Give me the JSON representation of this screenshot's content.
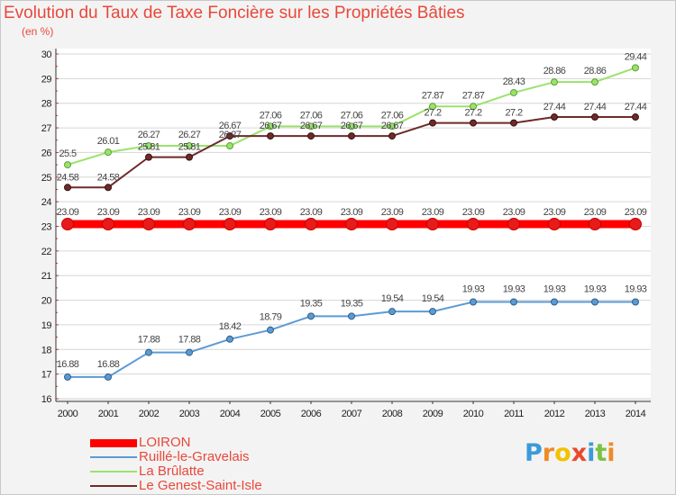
{
  "chart_data": {
    "type": "line",
    "title": "Evolution du Taux de Taxe Foncière sur les Propriétés Bâties",
    "ylabel": "(en %)",
    "xlabel": "",
    "categories": [
      "2000",
      "2001",
      "2002",
      "2003",
      "2004",
      "2005",
      "2006",
      "2007",
      "2008",
      "2009",
      "2010",
      "2011",
      "2012",
      "2013",
      "2014"
    ],
    "yticks": [
      16,
      17,
      18,
      19,
      20,
      21,
      22,
      23,
      24,
      25,
      26,
      27,
      28,
      29,
      30
    ],
    "ylim": [
      16,
      30
    ],
    "grid": "horizontal",
    "legend_position": "bottom-left",
    "series": [
      {
        "name": "LOIRON",
        "color": "#ff0000",
        "values": [
          23.09,
          23.09,
          23.09,
          23.09,
          23.09,
          23.09,
          23.09,
          23.09,
          23.09,
          23.09,
          23.09,
          23.09,
          23.09,
          23.09,
          23.09
        ],
        "labels": [
          "23.09",
          "23.09",
          "23.09",
          "23.09",
          "23.09",
          "23.09",
          "23.09",
          "23.09",
          "23.09",
          "23.09",
          "23.09",
          "23.09",
          "23.09",
          "23.09",
          "23.09"
        ]
      },
      {
        "name": "Ruillé-le-Gravelais",
        "color": "#5b9bd5",
        "values": [
          16.88,
          16.88,
          17.88,
          17.88,
          18.42,
          18.79,
          19.35,
          19.35,
          19.54,
          19.54,
          19.93,
          19.93,
          19.93,
          19.93,
          19.93
        ],
        "labels": [
          "16.88",
          "16.88",
          "17.88",
          "17.88",
          "18.42",
          "18.79",
          "19.35",
          "19.35",
          "19.54",
          "19.54",
          "19.93",
          "19.93",
          "19.93",
          "19.93",
          "19.93"
        ]
      },
      {
        "name": "La Brûlatte",
        "color": "#99e36b",
        "values": [
          25.5,
          26.01,
          26.27,
          26.27,
          26.27,
          27.06,
          27.06,
          27.06,
          27.06,
          27.87,
          27.87,
          28.43,
          28.86,
          28.86,
          29.44
        ],
        "labels": [
          "25.5",
          "26.01",
          "26.27",
          "26.27",
          "26.27",
          "27.06",
          "27.06",
          "27.06",
          "27.06",
          "27.87",
          "27.87",
          "28.43",
          "28.86",
          "28.86",
          "29.44"
        ]
      },
      {
        "name": "Le Genest-Saint-Isle",
        "color": "#6e2a2a",
        "values": [
          24.58,
          24.58,
          25.81,
          25.81,
          26.67,
          26.67,
          26.67,
          26.67,
          26.67,
          27.2,
          27.2,
          27.2,
          27.44,
          27.44,
          27.44
        ],
        "labels": [
          "24.58",
          "24.58",
          "25.81",
          "25.81",
          "26.67",
          "26.67",
          "26.67",
          "26.67",
          "26.67",
          "27.2",
          "27.2",
          "27.2",
          "27.44",
          "27.44",
          "27.44"
        ]
      }
    ]
  },
  "legend": {
    "items": [
      {
        "label": "LOIRON",
        "color": "#ff0000",
        "text_color": "#e8483a"
      },
      {
        "label": "Ruillé-le-Gravelais",
        "color": "#5b9bd5",
        "text_color": "#e8483a"
      },
      {
        "label": "La Brûlatte",
        "color": "#99e36b",
        "text_color": "#e8483a"
      },
      {
        "label": "Le Genest-Saint-Isle",
        "color": "#6e2a2a",
        "text_color": "#e8483a"
      }
    ]
  },
  "logo": {
    "letters": [
      "P",
      "r",
      "o",
      "x",
      "i",
      "t",
      "i"
    ],
    "colors": [
      "#3b9ad9",
      "#f08a24",
      "#f2c200",
      "#e84a2c",
      "#3b9ad9",
      "#7cc242",
      "#f08a24"
    ]
  }
}
